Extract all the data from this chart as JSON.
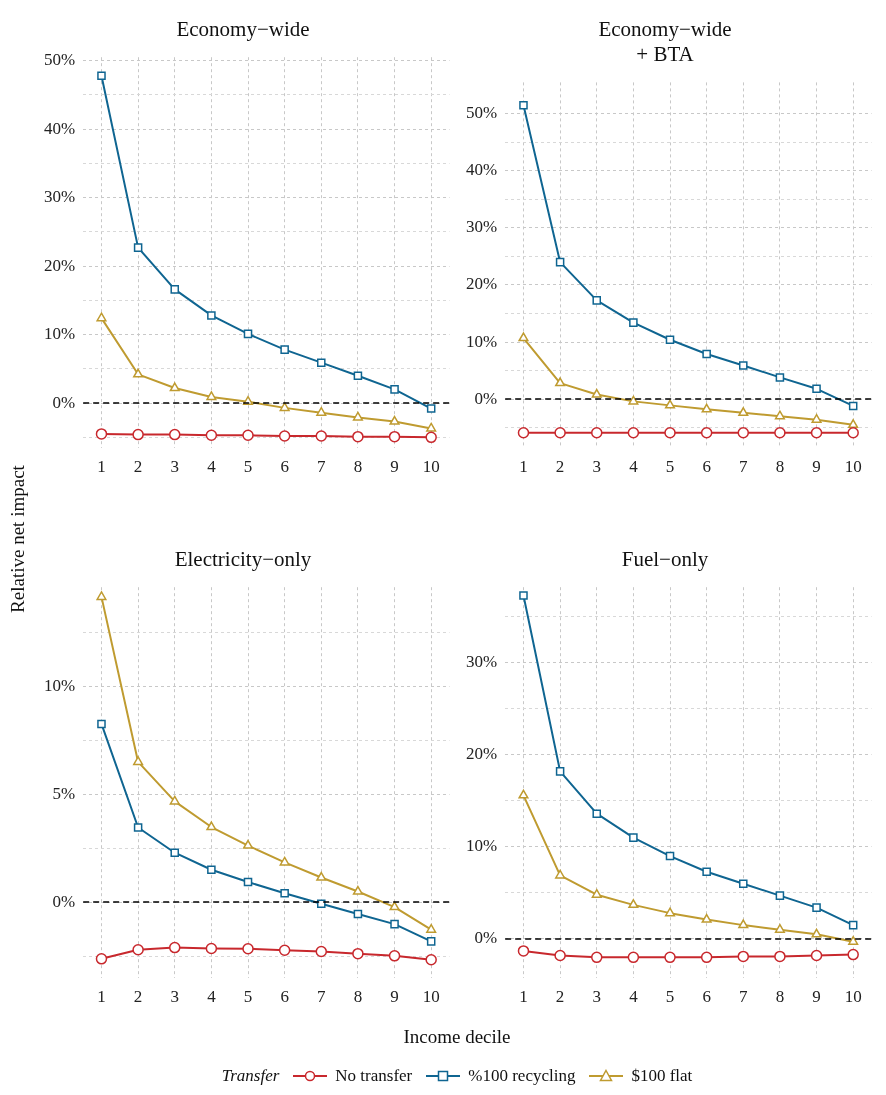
{
  "chart_data": [
    {
      "type": "line",
      "title": "Economy−wide",
      "xlabel": "Income decile",
      "ylabel": "Relative net impact",
      "legend": "bottom",
      "legend_title": "Transfer",
      "categories": [
        "1",
        "2",
        "3",
        "4",
        "5",
        "6",
        "7",
        "8",
        "9",
        "10"
      ],
      "ylim": [
        -6.5,
        50.5
      ],
      "yticks": [
        {
          "value": -5,
          "label": null
        },
        {
          "value": 0,
          "label": "0%"
        },
        {
          "value": 5,
          "label": null
        },
        {
          "value": 10,
          "label": "10%"
        },
        {
          "value": 15,
          "label": null
        },
        {
          "value": 20,
          "label": "20%"
        },
        {
          "value": 25,
          "label": null
        },
        {
          "value": 30,
          "label": "30%"
        },
        {
          "value": 35,
          "label": null
        },
        {
          "value": 40,
          "label": "40%"
        },
        {
          "value": 45,
          "label": null
        },
        {
          "value": 50,
          "label": "50%"
        }
      ],
      "grid": true,
      "ref_lines": [
        {
          "axis": "y",
          "value": 0,
          "color": "#000000",
          "line_style": "dashed"
        }
      ],
      "series": [
        {
          "name": "No transfer",
          "color": "#c8282d",
          "marker": "circle",
          "values": [
            -4.5,
            -4.6,
            -4.6,
            -4.7,
            -4.7,
            -4.8,
            -4.8,
            -4.9,
            -4.9,
            -5.0
          ]
        },
        {
          "name": "%100 recycling",
          "color": "#0f6591",
          "marker": "square",
          "values": [
            47.8,
            22.7,
            16.6,
            12.8,
            10.1,
            7.8,
            5.9,
            4.0,
            2.0,
            -0.8
          ]
        },
        {
          "name": "$100 flat",
          "color": "#bf9b30",
          "marker": "triangle",
          "values": [
            12.4,
            4.2,
            2.2,
            0.9,
            0.2,
            -0.7,
            -1.4,
            -2.1,
            -2.7,
            -3.7
          ]
        }
      ]
    },
    {
      "type": "line",
      "title": "Economy−wide\n+ BTA",
      "categories": [
        "1",
        "2",
        "3",
        "4",
        "5",
        "6",
        "7",
        "8",
        "9",
        "10"
      ],
      "ylim": [
        -8.5,
        55.5
      ],
      "yticks": [
        {
          "value": -5,
          "label": null
        },
        {
          "value": 0,
          "label": "0%"
        },
        {
          "value": 5,
          "label": null
        },
        {
          "value": 10,
          "label": "10%"
        },
        {
          "value": 15,
          "label": null
        },
        {
          "value": 20,
          "label": "20%"
        },
        {
          "value": 25,
          "label": null
        },
        {
          "value": 30,
          "label": "30%"
        },
        {
          "value": 35,
          "label": null
        },
        {
          "value": 40,
          "label": "40%"
        },
        {
          "value": 45,
          "label": null
        },
        {
          "value": 50,
          "label": "50%"
        }
      ],
      "grid": true,
      "ref_lines": [
        {
          "axis": "y",
          "value": 0,
          "color": "#000000",
          "line_style": "dashed"
        }
      ],
      "series": [
        {
          "color": "#c8282d",
          "marker": "circle",
          "values": [
            -5.9,
            -5.9,
            -5.9,
            -5.9,
            -5.9,
            -5.9,
            -5.9,
            -5.9,
            -5.9,
            -5.9
          ]
        },
        {
          "color": "#0f6591",
          "marker": "square",
          "values": [
            51.5,
            24.0,
            17.3,
            13.4,
            10.4,
            7.9,
            5.9,
            3.8,
            1.8,
            -1.2
          ]
        },
        {
          "color": "#bf9b30",
          "marker": "triangle",
          "values": [
            10.7,
            2.8,
            0.8,
            -0.4,
            -1.1,
            -1.8,
            -2.4,
            -3.0,
            -3.6,
            -4.5
          ]
        }
      ]
    },
    {
      "type": "line",
      "title": "Electricity−only",
      "categories": [
        "1",
        "2",
        "3",
        "4",
        "5",
        "6",
        "7",
        "8",
        "9",
        "10"
      ],
      "ylim": [
        -3.5,
        14.6
      ],
      "yticks": [
        {
          "value": -2.5,
          "label": null
        },
        {
          "value": 0,
          "label": "0%"
        },
        {
          "value": 2.5,
          "label": null
        },
        {
          "value": 5,
          "label": "5%"
        },
        {
          "value": 7.5,
          "label": null
        },
        {
          "value": 10,
          "label": "10%"
        },
        {
          "value": 12.5,
          "label": null
        }
      ],
      "grid": true,
      "ref_lines": [
        {
          "axis": "y",
          "value": 0,
          "color": "#000000",
          "line_style": "dashed"
        }
      ],
      "series": [
        {
          "color": "#c8282d",
          "marker": "circle",
          "values": [
            -2.63,
            -2.21,
            -2.11,
            -2.15,
            -2.16,
            -2.23,
            -2.29,
            -2.39,
            -2.49,
            -2.67
          ]
        },
        {
          "color": "#0f6591",
          "marker": "square",
          "values": [
            8.26,
            3.46,
            2.29,
            1.5,
            0.93,
            0.41,
            -0.08,
            -0.55,
            -1.02,
            -1.82
          ]
        },
        {
          "color": "#bf9b30",
          "marker": "triangle",
          "values": [
            14.15,
            6.5,
            4.67,
            3.48,
            2.62,
            1.84,
            1.14,
            0.49,
            -0.23,
            -1.28
          ]
        }
      ]
    },
    {
      "type": "line",
      "title": "Fuel−only",
      "categories": [
        "1",
        "2",
        "3",
        "4",
        "5",
        "6",
        "7",
        "8",
        "9",
        "10"
      ],
      "ylim": [
        -4.2,
        38.2
      ],
      "yticks": [
        {
          "value": 0,
          "label": "0%"
        },
        {
          "value": 5,
          "label": null
        },
        {
          "value": 10,
          "label": "10%"
        },
        {
          "value": 15,
          "label": null
        },
        {
          "value": 20,
          "label": "20%"
        },
        {
          "value": 25,
          "label": null
        },
        {
          "value": 30,
          "label": "30%"
        },
        {
          "value": 35,
          "label": null
        }
      ],
      "grid": true,
      "ref_lines": [
        {
          "axis": "y",
          "value": 0,
          "color": "#000000",
          "line_style": "dashed"
        }
      ],
      "series": [
        {
          "color": "#c8282d",
          "marker": "circle",
          "values": [
            -1.3,
            -1.8,
            -2.0,
            -2.0,
            -2.0,
            -2.0,
            -1.9,
            -1.9,
            -1.8,
            -1.7
          ]
        },
        {
          "color": "#0f6591",
          "marker": "square",
          "values": [
            37.3,
            18.2,
            13.6,
            11.0,
            9.0,
            7.3,
            6.0,
            4.7,
            3.4,
            1.5
          ]
        },
        {
          "color": "#bf9b30",
          "marker": "triangle",
          "values": [
            15.6,
            6.9,
            4.8,
            3.7,
            2.8,
            2.1,
            1.5,
            1.0,
            0.5,
            -0.3
          ]
        }
      ]
    }
  ]
}
